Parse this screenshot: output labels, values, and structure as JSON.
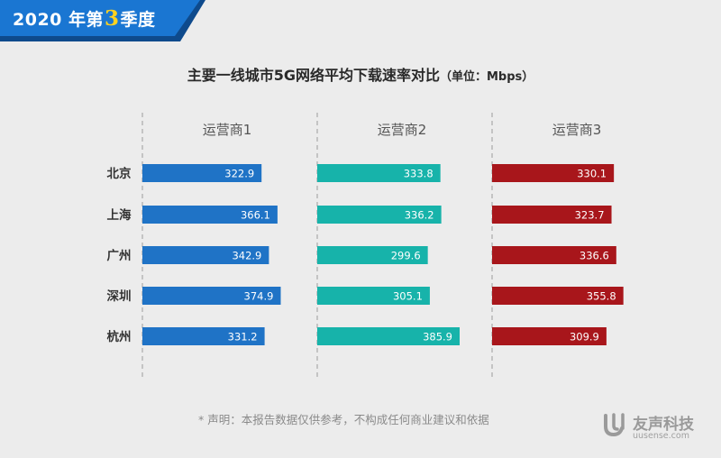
{
  "banner": {
    "prefix": "2020 年第",
    "quarter": "3",
    "suffix": "季度",
    "colors": {
      "dark": "#0e4a8c",
      "main": "#1a76d2",
      "quarter_text": "#ffd21f"
    }
  },
  "footer": {
    "disclaimer": "* 声明：本报告数据仅供参考，不构成任何商业建议和依据",
    "brand_name": "友声科技",
    "brand_url": "uusense.com",
    "brand_icon": "uusense-logo-icon"
  },
  "chart_data": {
    "type": "bar",
    "orientation": "horizontal",
    "title": "主要一线城市5G网络平均下载速率对比",
    "unit_label": "（单位：Mbps）",
    "categories": [
      "北京",
      "上海",
      "广州",
      "深圳",
      "杭州"
    ],
    "series": [
      {
        "name": "运营商1",
        "values": [
          322.9,
          366.1,
          342.9,
          374.9,
          331.2
        ],
        "color": "#1f73c6"
      },
      {
        "name": "运营商2",
        "values": [
          333.8,
          336.2,
          299.6,
          305.1,
          385.9
        ],
        "color": "#17b3aa"
      },
      {
        "name": "运营商3",
        "values": [
          330.1,
          323.7,
          336.6,
          355.8,
          309.9
        ],
        "color": "#a8161b"
      }
    ],
    "grid": false,
    "value_labels": "inside-end"
  }
}
